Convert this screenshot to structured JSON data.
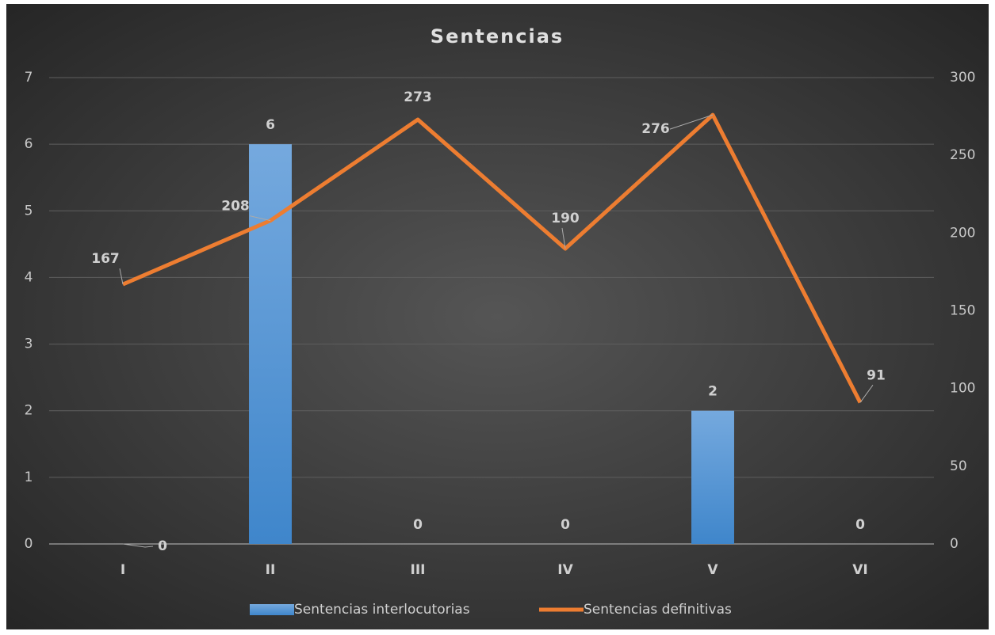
{
  "chart_data": {
    "type": "bar_line",
    "title": "Sentencias",
    "categories": [
      "I",
      "II",
      "III",
      "IV",
      "V",
      "VI"
    ],
    "series": [
      {
        "name": "Sentencias interlocutorias",
        "type": "bar",
        "color": "#5b9bd5",
        "values": [
          0,
          6,
          0,
          0,
          2,
          0
        ]
      },
      {
        "name": "Sentencias definitivas",
        "type": "line",
        "axis": "y2",
        "color": "#ed7d31",
        "values": [
          167,
          208,
          273,
          190,
          276,
          91
        ]
      }
    ],
    "ylim": [
      0,
      7
    ],
    "yticks": [
      0,
      1,
      2,
      3,
      4,
      5,
      6,
      7
    ],
    "y2lim": [
      0,
      300
    ],
    "y2ticks": [
      0,
      50,
      100,
      150,
      200,
      250,
      300
    ],
    "grid": true,
    "legend": "bottom"
  }
}
